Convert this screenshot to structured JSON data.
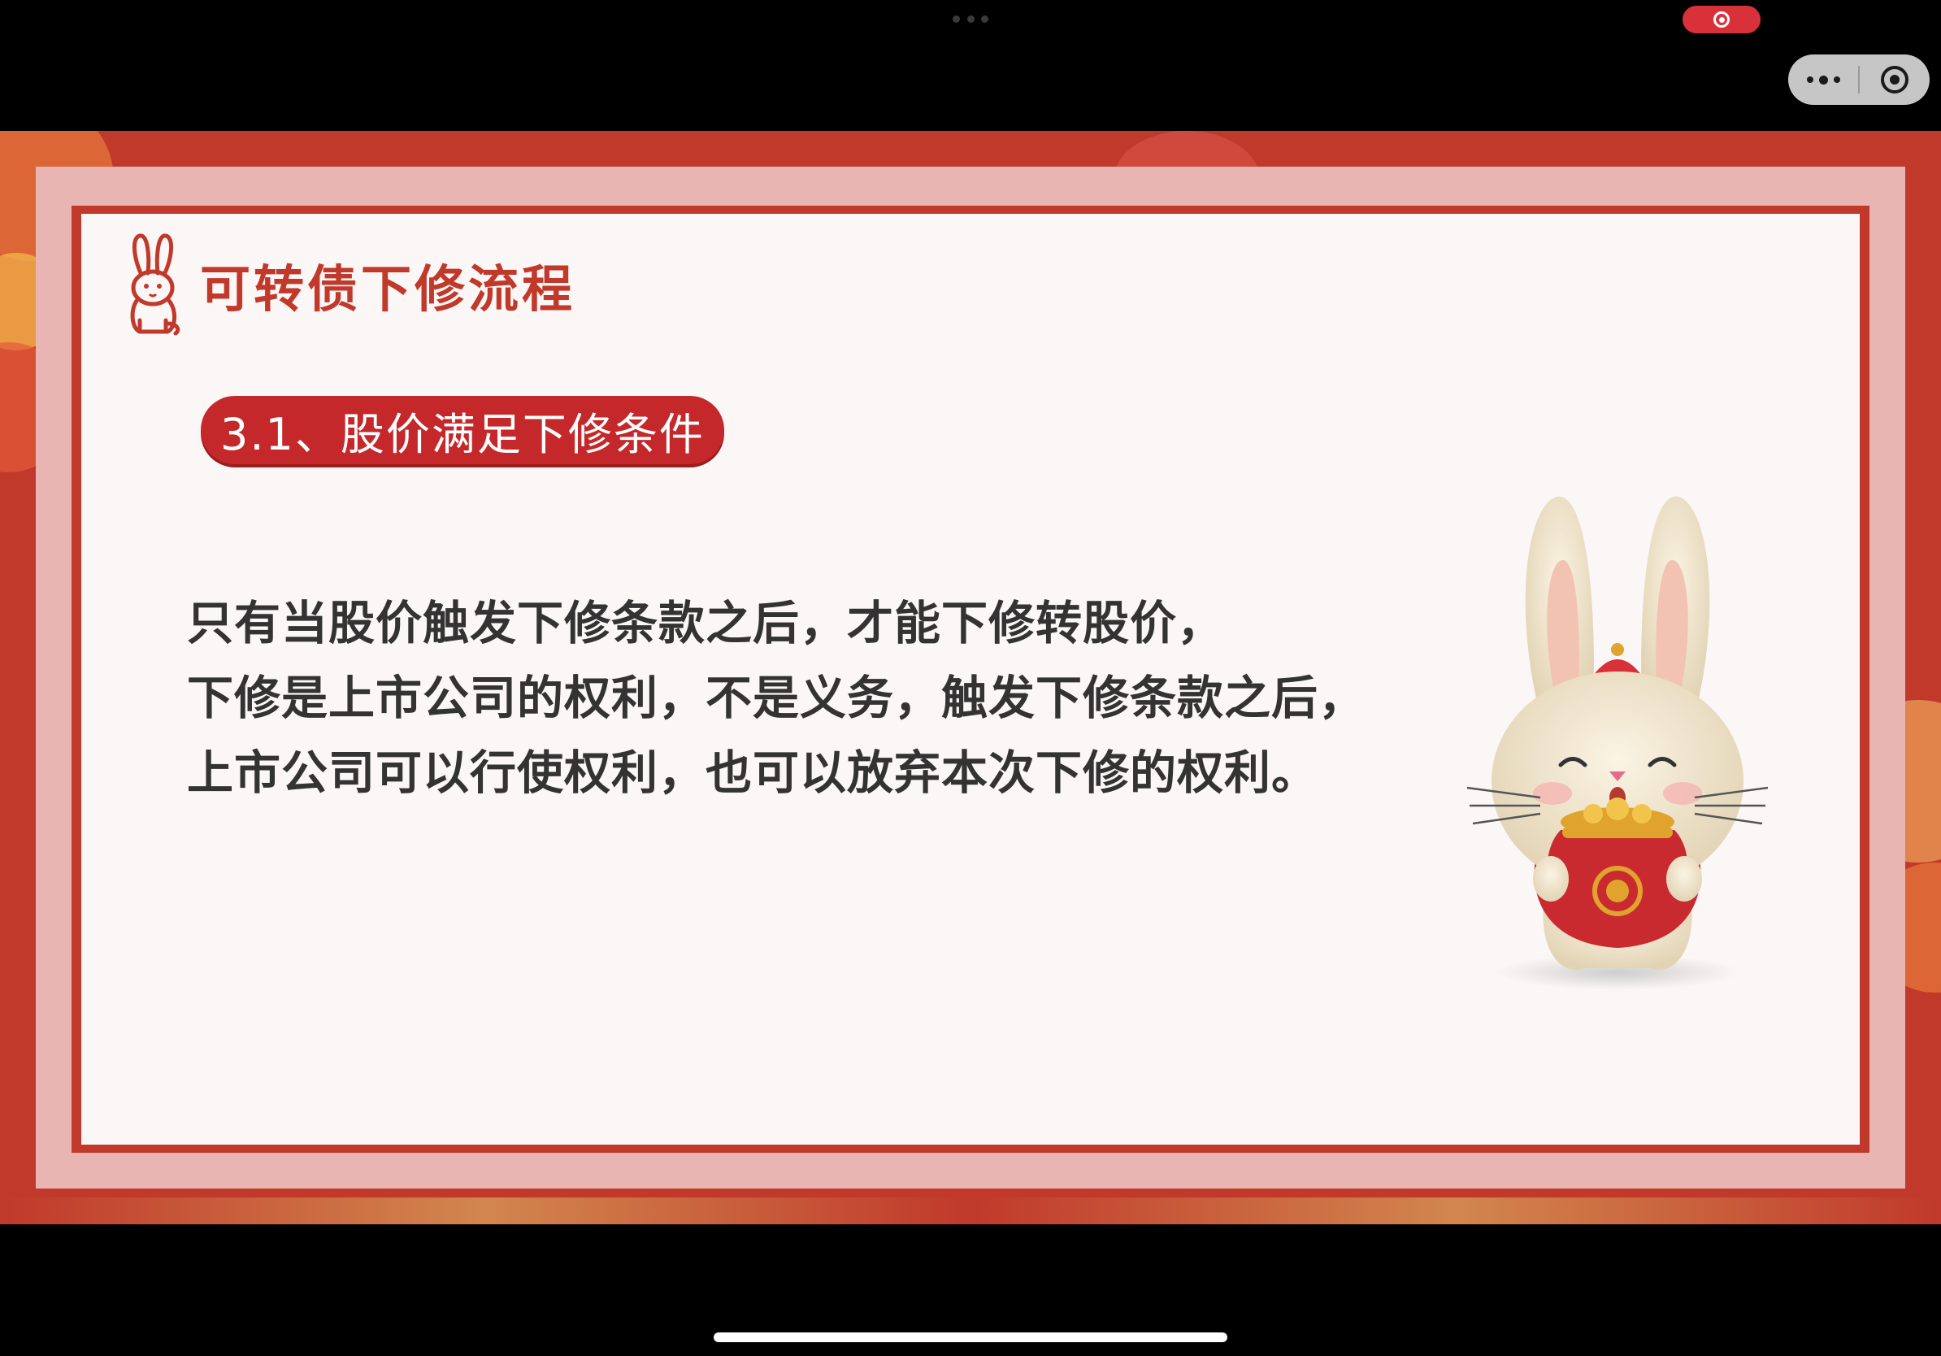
{
  "slide": {
    "title": "可转债下修流程",
    "subtitle": "3.1、股价满足下修条件",
    "body_lines": [
      "只有当股价触发下修条款之后，才能下修转股价，",
      "下修是上市公司的权利，不是义务，触发下修条款之后，",
      "上市公司可以行使权利，也可以放弃本次下修的权利。"
    ]
  },
  "icons": {
    "title_icon": "rabbit-icon",
    "mascot": "rabbit-mascot-icon",
    "more": "more-dots-icon",
    "close": "close-target-icon",
    "record": "recording-icon"
  },
  "colors": {
    "accent_red": "#c0392b",
    "pill_red": "#c4282a",
    "frame_pink": "#e8b5b2",
    "slide_bg": "#fbf7f6",
    "body_text": "#333333"
  }
}
